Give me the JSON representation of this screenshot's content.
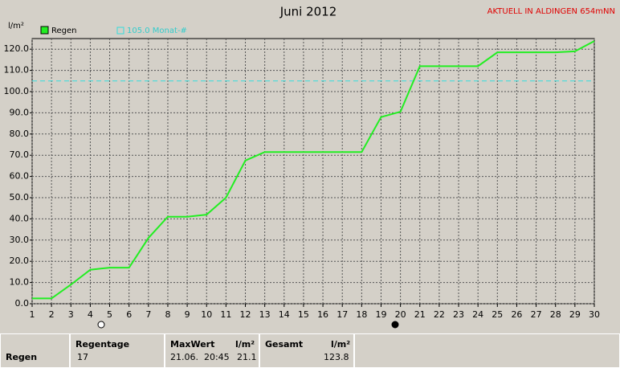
{
  "chart_data": {
    "type": "line",
    "title": "Juni 2012",
    "subtitle": "AKTUELL IN ALDINGEN 654mNN",
    "y_label": "l/m²",
    "x": [
      1,
      2,
      3,
      4,
      5,
      6,
      7,
      8,
      9,
      10,
      11,
      12,
      13,
      14,
      15,
      16,
      17,
      18,
      19,
      20,
      21,
      22,
      23,
      24,
      25,
      26,
      27,
      28,
      29,
      30
    ],
    "series": [
      {
        "name": "Regen",
        "color": "#22ee22",
        "values": [
          2.5,
          2.5,
          9,
          16,
          17,
          17,
          31,
          41,
          41,
          42,
          50,
          67.5,
          71.5,
          71.5,
          71.5,
          71.5,
          71.5,
          71.5,
          88,
          90.5,
          112,
          112,
          112,
          112,
          118.5,
          118.5,
          118.5,
          118.5,
          119,
          123.8
        ]
      }
    ],
    "reference_line": {
      "value": 105,
      "label": "105.0 Monat-#",
      "color": "#33dddd"
    },
    "xlim": [
      1,
      30
    ],
    "ylim": [
      0,
      125
    ],
    "xticks": [
      1,
      2,
      3,
      4,
      5,
      6,
      7,
      8,
      9,
      10,
      11,
      12,
      13,
      14,
      15,
      16,
      17,
      18,
      19,
      20,
      21,
      22,
      23,
      24,
      25,
      26,
      27,
      28,
      29,
      30
    ],
    "yticks": [
      {
        "value": 0,
        "label": "0.0"
      },
      {
        "value": 10,
        "label": "10.0"
      },
      {
        "value": 20,
        "label": "20.0"
      },
      {
        "value": 30,
        "label": "30.0"
      },
      {
        "value": 40,
        "label": "40.0"
      },
      {
        "value": 50,
        "label": "50.0"
      },
      {
        "value": 60,
        "label": "60.0"
      },
      {
        "value": 70,
        "label": "70.0"
      },
      {
        "value": 80,
        "label": "80.0"
      },
      {
        "value": 90,
        "label": "90.0"
      },
      {
        "value": 100,
        "label": "100.0"
      },
      {
        "value": 110,
        "label": "110.0"
      },
      {
        "value": 120,
        "label": "120.0"
      }
    ],
    "grid": true
  },
  "stats": {
    "row_label": "Regen",
    "headers": [
      "Regentage",
      "MaxWert",
      "l/m²",
      "Gesamt",
      "l/m²"
    ],
    "values": [
      "17",
      "21.06.  20:45",
      "21.1",
      "123.8"
    ]
  }
}
